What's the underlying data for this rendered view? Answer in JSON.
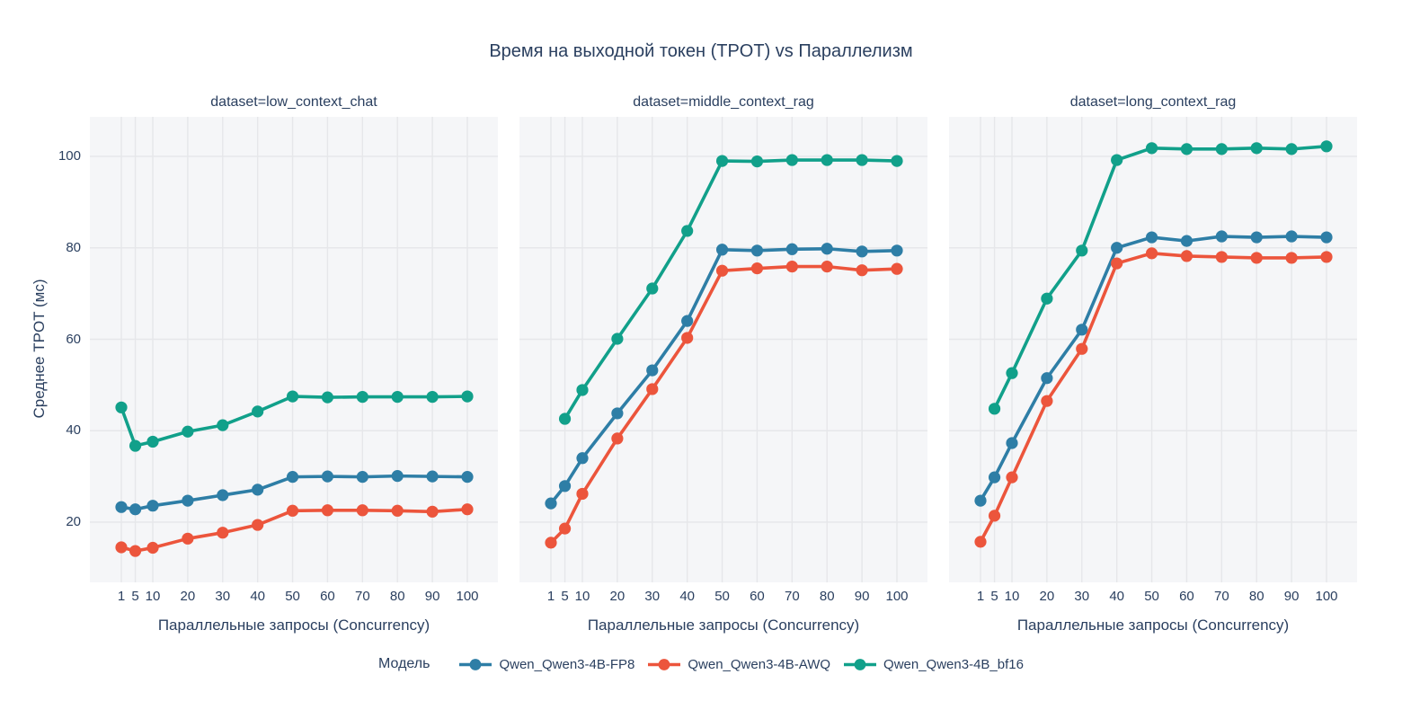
{
  "title": "Время на выходной токен (TPOT) vs Параллелизм",
  "xlabel": "Параллельные запросы (Concurrency)",
  "ylabel": "Среднее TPOT (мс)",
  "legend": {
    "title": "Модель",
    "entries": [
      {
        "label": "Qwen_Qwen3-4B-FP8",
        "color": "#2E7EA6"
      },
      {
        "label": "Qwen_Qwen3-4B-AWQ",
        "color": "#EC553C"
      },
      {
        "label": "Qwen_Qwen3-4B_bf16",
        "color": "#11A08A"
      }
    ]
  },
  "colors": {
    "text": "#2a3f5f",
    "plot_background": "#f5f6f8",
    "gridline": "#e6e7ea",
    "paper_background": "#ffffff"
  },
  "axis": {
    "x_ticks": [
      1,
      5,
      10,
      20,
      30,
      40,
      50,
      60,
      70,
      80,
      90,
      100
    ],
    "y_ticks": [
      20,
      40,
      60,
      80,
      100
    ],
    "x_range": [
      1,
      100
    ],
    "y_range": [
      6.8,
      108.7
    ],
    "grid": true
  },
  "chart_data": [
    {
      "type": "line",
      "title": "dataset=low_context_chat",
      "x": [
        1,
        5,
        10,
        20,
        30,
        40,
        50,
        60,
        70,
        80,
        90,
        100
      ],
      "series": [
        {
          "name": "Qwen_Qwen3-4B-FP8",
          "color": "#2E7EA6",
          "values": [
            23.3,
            22.8,
            23.6,
            24.7,
            25.9,
            27.1,
            29.9,
            30.0,
            29.9,
            30.1,
            30.0,
            29.9
          ]
        },
        {
          "name": "Qwen_Qwen3-4B-AWQ",
          "color": "#EC553C",
          "values": [
            14.5,
            13.7,
            14.4,
            16.4,
            17.7,
            19.4,
            22.5,
            22.6,
            22.6,
            22.5,
            22.3,
            22.8
          ]
        },
        {
          "name": "Qwen_Qwen3-4B_bf16",
          "color": "#11A08A",
          "values": [
            45.1,
            36.7,
            37.6,
            39.8,
            41.2,
            44.2,
            47.5,
            47.3,
            47.4,
            47.4,
            47.4,
            47.5
          ]
        }
      ]
    },
    {
      "type": "line",
      "title": "dataset=middle_context_rag",
      "x": [
        1,
        5,
        10,
        20,
        30,
        40,
        50,
        60,
        70,
        80,
        90,
        100
      ],
      "series": [
        {
          "name": "Qwen_Qwen3-4B-FP8",
          "color": "#2E7EA6",
          "values": [
            24.1,
            27.9,
            34.0,
            43.8,
            53.2,
            64.0,
            79.6,
            79.4,
            79.7,
            79.8,
            79.2,
            79.4
          ]
        },
        {
          "name": "Qwen_Qwen3-4B-AWQ",
          "color": "#EC553C",
          "values": [
            15.5,
            18.6,
            26.2,
            38.3,
            49.1,
            60.3,
            75.0,
            75.5,
            75.9,
            75.9,
            75.1,
            75.4
          ]
        },
        {
          "name": "Qwen_Qwen3-4B_bf16",
          "color": "#11A08A",
          "x": [
            5,
            10,
            20,
            30,
            40,
            50,
            60,
            70,
            80,
            90,
            100
          ],
          "values": [
            42.6,
            48.9,
            60.1,
            71.1,
            83.7,
            99.0,
            98.9,
            99.2,
            99.2,
            99.2,
            99.0
          ]
        }
      ]
    },
    {
      "type": "line",
      "title": "dataset=long_context_rag",
      "x": [
        1,
        5,
        10,
        20,
        30,
        40,
        50,
        60,
        70,
        80,
        90,
        100
      ],
      "series": [
        {
          "name": "Qwen_Qwen3-4B-FP8",
          "color": "#2E7EA6",
          "values": [
            24.7,
            29.8,
            37.3,
            51.5,
            62.1,
            80.0,
            82.3,
            81.5,
            82.5,
            82.3,
            82.5,
            82.3
          ]
        },
        {
          "name": "Qwen_Qwen3-4B-AWQ",
          "color": "#EC553C",
          "values": [
            15.7,
            21.4,
            29.8,
            46.5,
            57.9,
            76.6,
            78.8,
            78.2,
            78.0,
            77.8,
            77.8,
            78.0
          ]
        },
        {
          "name": "Qwen_Qwen3-4B_bf16",
          "color": "#11A08A",
          "x": [
            5,
            10,
            20,
            30,
            40,
            50,
            60,
            70,
            80,
            90,
            100
          ],
          "values": [
            44.8,
            52.6,
            68.9,
            79.4,
            99.2,
            101.8,
            101.6,
            101.6,
            101.8,
            101.6,
            102.2
          ]
        }
      ]
    }
  ]
}
